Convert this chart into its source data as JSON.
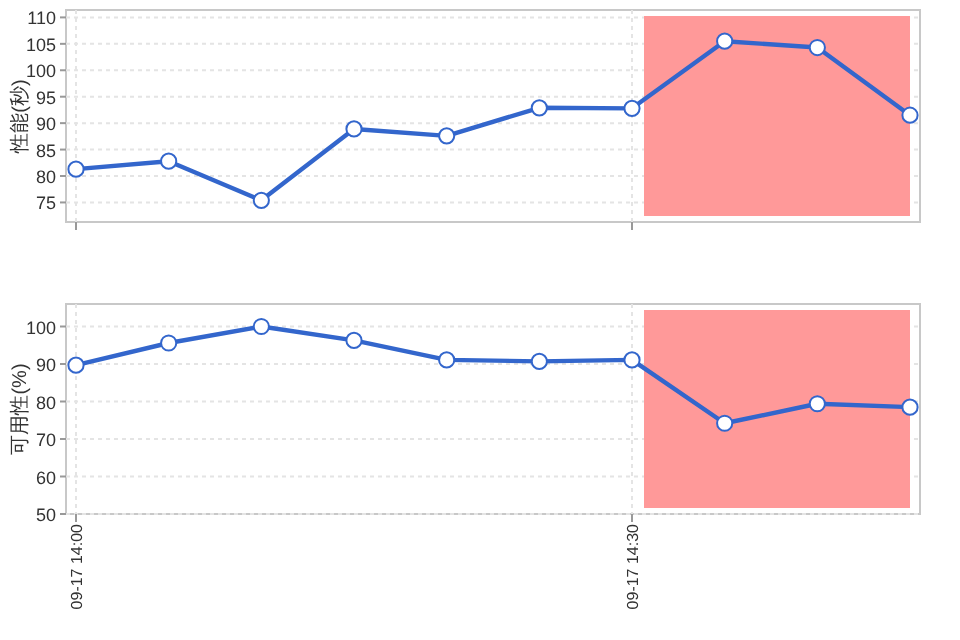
{
  "chart_data": [
    {
      "type": "line",
      "ylabel": "性能(秒)",
      "categories": [
        null,
        null,
        null,
        null,
        null,
        null,
        null,
        null,
        null,
        null
      ],
      "series": [
        {
          "color": "#3366cc",
          "values": [
            81.3,
            82.8,
            75.4,
            88.9,
            87.6,
            92.9,
            92.8,
            105.5,
            104.3,
            91.5
          ]
        }
      ],
      "ylim": [
        71.3,
        111.4
      ],
      "yticks": [
        75,
        80,
        85,
        90,
        95,
        100,
        105,
        110
      ],
      "grid": true,
      "marker": "circle",
      "tick_labels": "y"
    },
    {
      "type": "line",
      "ylabel": "可用性(%)",
      "categories": [
        "09-17 14:00",
        null,
        null,
        null,
        null,
        null,
        "09-17 14:30",
        null,
        null,
        null
      ],
      "series": [
        {
          "color": "#3366cc",
          "values": [
            89.7,
            95.6,
            100,
            96.3,
            91.1,
            90.7,
            91.1,
            74.2,
            79.4,
            78.5
          ]
        }
      ],
      "ylim": [
        50,
        106
      ],
      "yticks": [
        50,
        60,
        70,
        80,
        90,
        100
      ],
      "grid": true,
      "marker": "circle"
    }
  ]
}
